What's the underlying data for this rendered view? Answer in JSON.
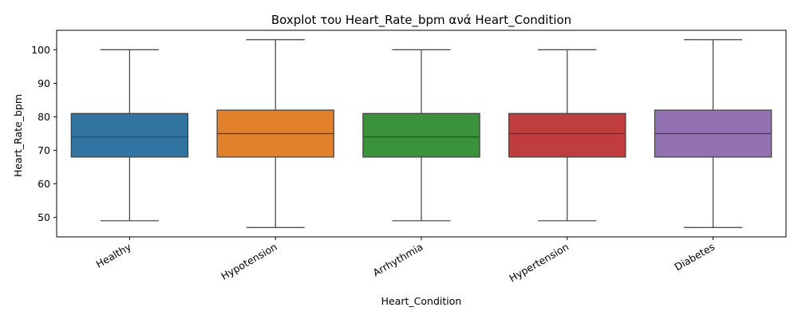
{
  "chart_data": {
    "type": "boxplot",
    "title": "Boxplot του Heart_Rate_bpm ανά Heart_Condition",
    "xlabel": "Heart_Condition",
    "ylabel": "Heart_Rate_bpm",
    "ylim": [
      44.2,
      105.8
    ],
    "yticks": [
      50,
      60,
      70,
      80,
      90,
      100
    ],
    "grid": false,
    "categories": [
      "Healthy",
      "Hypotension",
      "Arrhythmia",
      "Hypertension",
      "Diabetes"
    ],
    "colors": [
      "#3274a1",
      "#e1812c",
      "#3a923a",
      "#c03d3e",
      "#9372b2"
    ],
    "boxes": [
      {
        "min": 49,
        "q1": 68,
        "median": 74,
        "q3": 81,
        "max": 100
      },
      {
        "min": 47,
        "q1": 68,
        "median": 75,
        "q3": 82,
        "max": 103
      },
      {
        "min": 49,
        "q1": 68,
        "median": 74,
        "q3": 81,
        "max": 100
      },
      {
        "min": 49,
        "q1": 68,
        "median": 75,
        "q3": 81,
        "max": 100
      },
      {
        "min": 47,
        "q1": 68,
        "median": 75,
        "q3": 82,
        "max": 103
      }
    ]
  }
}
